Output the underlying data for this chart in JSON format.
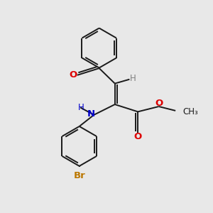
{
  "bg_color": "#e8e8e8",
  "bond_color": "#1a1a1a",
  "N_color": "#0000cc",
  "O_color": "#dd0000",
  "Br_color": "#bb7700",
  "H_color": "#808080",
  "lw": 1.4,
  "figsize": [
    3.0,
    3.0
  ],
  "dpi": 100,
  "xlim": [
    0,
    10
  ],
  "ylim": [
    0,
    10
  ]
}
